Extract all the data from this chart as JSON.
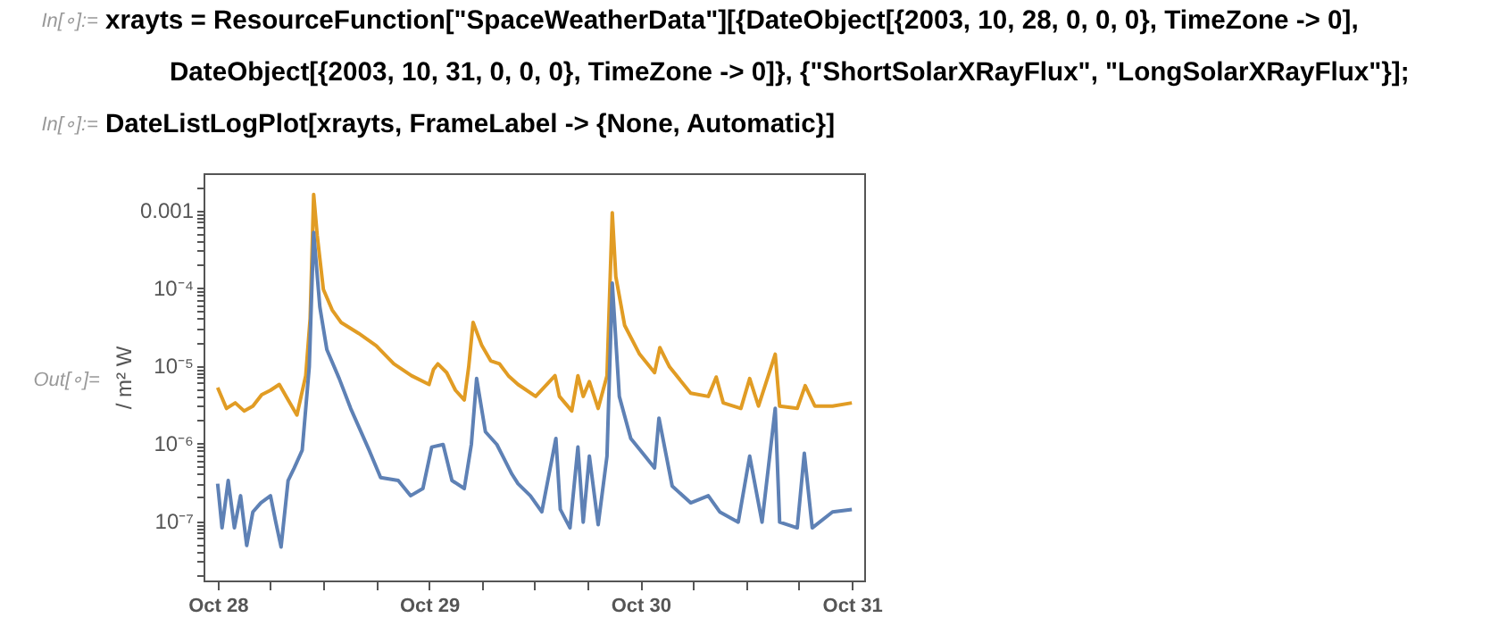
{
  "chart_data": {
    "type": "line",
    "ylabel": "/ m² W",
    "log": "y",
    "line_style": "solid",
    "annotations": [
      "In[∘]:=",
      "xrayts = ResourceFunction[\"SpaceWeatherData\"][{DateObject[{2003, 10, 28, 0, 0, 0}, TimeZone -> 0],",
      "DateObject[{2003, 10, 31, 0, 0, 0}, TimeZone -> 0]}, {\"ShortSolarXRayFlux\", \"LongSolarXRayFlux\"}];",
      "In[∘]:=",
      "DateListLogPlot[xrayts, FrameLabel -> {None, Automatic}]",
      "Out[∘]="
    ],
    "xlim": [
      "2003-10-27T22:24",
      "2003-10-31T01:24"
    ],
    "xticks": [
      {
        "value": "2003-10-28",
        "label": "Oct 28"
      },
      {
        "value": "2003-10-28T06:00",
        "label": null
      },
      {
        "value": "2003-10-28T12:00",
        "label": null
      },
      {
        "value": "2003-10-28T18:00",
        "label": null
      },
      {
        "value": "2003-10-29",
        "label": "Oct 29"
      },
      {
        "value": "2003-10-29T06:00",
        "label": null
      },
      {
        "value": "2003-10-29T12:00",
        "label": null
      },
      {
        "value": "2003-10-29T18:00",
        "label": null
      },
      {
        "value": "2003-10-30",
        "label": "Oct 30"
      },
      {
        "value": "2003-10-30T06:00",
        "label": null
      },
      {
        "value": "2003-10-30T12:00",
        "label": null
      },
      {
        "value": "2003-10-30T18:00",
        "label": null
      },
      {
        "value": "2003-10-31",
        "label": "Oct 31"
      }
    ],
    "ylim": [
      1.7e-08,
      0.003
    ],
    "yticks": [
      {
        "value": 2e-08,
        "label": null
      },
      {
        "value": 3e-08,
        "label": null
      },
      {
        "value": 4e-08,
        "label": null
      },
      {
        "value": 5e-08,
        "label": null
      },
      {
        "value": 6e-08,
        "label": null
      },
      {
        "value": 7e-08,
        "label": null
      },
      {
        "value": 8e-08,
        "label": null
      },
      {
        "value": 9e-08,
        "label": null
      },
      {
        "value": 1e-07,
        "label": "10⁻⁷"
      },
      {
        "value": 2e-07,
        "label": null
      },
      {
        "value": 3e-07,
        "label": null
      },
      {
        "value": 4e-07,
        "label": null
      },
      {
        "value": 5e-07,
        "label": null
      },
      {
        "value": 6e-07,
        "label": null
      },
      {
        "value": 7e-07,
        "label": null
      },
      {
        "value": 8e-07,
        "label": null
      },
      {
        "value": 9e-07,
        "label": null
      },
      {
        "value": 1e-06,
        "label": "10⁻⁶"
      },
      {
        "value": 2e-06,
        "label": null
      },
      {
        "value": 3e-06,
        "label": null
      },
      {
        "value": 4e-06,
        "label": null
      },
      {
        "value": 5e-06,
        "label": null
      },
      {
        "value": 6e-06,
        "label": null
      },
      {
        "value": 7e-06,
        "label": null
      },
      {
        "value": 8e-06,
        "label": null
      },
      {
        "value": 9e-06,
        "label": null
      },
      {
        "value": 1e-05,
        "label": "10⁻⁵"
      },
      {
        "value": 2e-05,
        "label": null
      },
      {
        "value": 3e-05,
        "label": null
      },
      {
        "value": 4e-05,
        "label": null
      },
      {
        "value": 5e-05,
        "label": null
      },
      {
        "value": 6e-05,
        "label": null
      },
      {
        "value": 7e-05,
        "label": null
      },
      {
        "value": 8e-05,
        "label": null
      },
      {
        "value": 9e-05,
        "label": null
      },
      {
        "value": 0.0001,
        "label": "10⁻⁴"
      },
      {
        "value": 0.0002,
        "label": null
      },
      {
        "value": 0.0003,
        "label": null
      },
      {
        "value": 0.0004,
        "label": null
      },
      {
        "value": 0.0005,
        "label": null
      },
      {
        "value": 0.0006,
        "label": null
      },
      {
        "value": 0.0007,
        "label": null
      },
      {
        "value": 0.0008,
        "label": null
      },
      {
        "value": 0.0009,
        "label": null
      },
      {
        "value": 0.001,
        "label": "0.001"
      },
      {
        "value": 0.002,
        "label": null
      }
    ],
    "series": [
      {
        "color": "#e19c24",
        "x": [
          "2003-10-28T00:00",
          "2003-10-28T01:00",
          "2003-10-28T02:00",
          "2003-10-28T03:00",
          "2003-10-28T04:00",
          "2003-10-28T05:00",
          "2003-10-28T06:00",
          "2003-10-28T07:00",
          "2003-10-28T08:00",
          "2003-10-28T09:00",
          "2003-10-28T10:00",
          "2003-10-28T10:30",
          "2003-10-28T10:54",
          "2003-10-28T11:18",
          "2003-10-28T12:00",
          "2003-10-28T13:00",
          "2003-10-28T14:00",
          "2003-10-28T16:00",
          "2003-10-28T18:00",
          "2003-10-28T20:00",
          "2003-10-28T22:00",
          "2003-10-29T00:00",
          "2003-10-29T00:30",
          "2003-10-29T01:00",
          "2003-10-29T02:00",
          "2003-10-29T03:00",
          "2003-10-29T04:00",
          "2003-10-29T04:30",
          "2003-10-29T05:00",
          "2003-10-29T06:00",
          "2003-10-29T07:00",
          "2003-10-29T08:00",
          "2003-10-29T09:00",
          "2003-10-29T10:06",
          "2003-10-29T12:06",
          "2003-10-29T14:18",
          "2003-10-29T14:48",
          "2003-10-29T16:12",
          "2003-10-29T16:54",
          "2003-10-29T17:30",
          "2003-10-29T18:12",
          "2003-10-29T19:12",
          "2003-10-29T20:12",
          "2003-10-29T20:48",
          "2003-10-29T21:12",
          "2003-10-29T22:12",
          "2003-10-29T23:54",
          "2003-10-30T01:36",
          "2003-10-30T02:12",
          "2003-10-30T03:18",
          "2003-10-30T05:42",
          "2003-10-30T07:42",
          "2003-10-30T08:36",
          "2003-10-30T09:24",
          "2003-10-30T11:24",
          "2003-10-30T12:24",
          "2003-10-30T13:24",
          "2003-10-30T15:18",
          "2003-10-30T15:48",
          "2003-10-30T17:48",
          "2003-10-30T18:42",
          "2003-10-30T19:48",
          "2003-10-30T21:48",
          "2003-10-31T00:00"
        ],
        "values": [
          5.2e-06,
          2.8e-06,
          3.3e-06,
          2.6e-06,
          3e-06,
          4.2e-06,
          4.8e-06,
          5.7e-06,
          3.6e-06,
          2.3e-06,
          7.4e-06,
          4e-05,
          0.0016,
          0.00048,
          9.6e-05,
          5.2e-05,
          3.6e-05,
          2.6e-05,
          1.8e-05,
          1.05e-05,
          7.4e-06,
          5.7e-06,
          8.9e-06,
          1.05e-05,
          8.1e-06,
          4.8e-06,
          3.6e-06,
          9.6e-06,
          3.6e-05,
          1.8e-05,
          1.15e-05,
          1.05e-05,
          7.4e-06,
          5.7e-06,
          4e-06,
          7.4e-06,
          4e-06,
          2.6e-06,
          7.4e-06,
          4e-06,
          6.2e-06,
          2.8e-06,
          7.4e-06,
          0.00093,
          0.00014,
          3.3e-05,
          1.4e-05,
          8.1e-06,
          1.7e-05,
          9.6e-06,
          4.4e-06,
          4e-06,
          7.1e-06,
          3.3e-06,
          2.8e-06,
          6.8e-06,
          3e-06,
          1.4e-05,
          3e-06,
          2.8e-06,
          5.5e-06,
          3e-06,
          3e-06,
          3.3e-06
        ]
      },
      {
        "color": "#5e81b5",
        "x": [
          "2003-10-28T00:00",
          "2003-10-28T00:30",
          "2003-10-28T01:12",
          "2003-10-28T01:54",
          "2003-10-28T02:36",
          "2003-10-28T03:18",
          "2003-10-28T04:00",
          "2003-10-28T04:54",
          "2003-10-28T06:00",
          "2003-10-28T06:36",
          "2003-10-28T07:12",
          "2003-10-28T08:00",
          "2003-10-28T08:42",
          "2003-10-28T09:36",
          "2003-10-28T10:24",
          "2003-10-28T10:54",
          "2003-10-28T11:36",
          "2003-10-28T12:24",
          "2003-10-28T13:48",
          "2003-10-28T15:06",
          "2003-10-28T17:12",
          "2003-10-28T18:30",
          "2003-10-28T20:30",
          "2003-10-28T21:54",
          "2003-10-28T23:18",
          "2003-10-29T00:18",
          "2003-10-29T01:36",
          "2003-10-29T02:36",
          "2003-10-29T04:00",
          "2003-10-29T04:48",
          "2003-10-29T05:24",
          "2003-10-29T06:24",
          "2003-10-29T07:42",
          "2003-10-29T09:24",
          "2003-10-29T10:06",
          "2003-10-29T11:30",
          "2003-10-29T12:48",
          "2003-10-29T14:24",
          "2003-10-29T14:54",
          "2003-10-29T16:00",
          "2003-10-29T16:54",
          "2003-10-29T17:30",
          "2003-10-29T18:12",
          "2003-10-29T19:12",
          "2003-10-29T20:12",
          "2003-10-29T20:48",
          "2003-10-29T21:36",
          "2003-10-29T22:54",
          "2003-10-30T01:36",
          "2003-10-30T02:06",
          "2003-10-30T03:36",
          "2003-10-30T05:42",
          "2003-10-30T07:42",
          "2003-10-30T09:00",
          "2003-10-30T11:06",
          "2003-10-30T12:24",
          "2003-10-30T13:48",
          "2003-10-30T15:18",
          "2003-10-30T15:48",
          "2003-10-30T17:48",
          "2003-10-30T18:36",
          "2003-10-30T19:30",
          "2003-10-30T21:48",
          "2003-10-31T00:00"
        ],
        "values": [
          3e-07,
          8.1e-08,
          3.3e-07,
          8.1e-08,
          2.1e-07,
          4.8e-08,
          1.3e-07,
          1.7e-07,
          2.1e-07,
          9.6e-08,
          4.6e-08,
          3.3e-07,
          4.8e-07,
          8.1e-07,
          9.6e-06,
          0.00052,
          5.7e-05,
          1.6e-05,
          6.8e-06,
          2.8e-06,
          8.1e-07,
          3.6e-07,
          3.3e-07,
          2.1e-07,
          2.6e-07,
          8.9e-07,
          9.6e-07,
          3.3e-07,
          2.6e-07,
          9.6e-07,
          6.8e-06,
          1.4e-06,
          9.6e-07,
          4e-07,
          3e-07,
          2.1e-07,
          1.3e-07,
          1.15e-06,
          1.4e-07,
          8.1e-08,
          8.9e-07,
          9.6e-08,
          6.8e-07,
          8.9e-08,
          6.8e-07,
          0.000115,
          4e-06,
          1.15e-06,
          4.8e-07,
          2.1e-06,
          2.8e-07,
          1.7e-07,
          2.1e-07,
          1.3e-07,
          9.6e-08,
          6.8e-07,
          9.6e-08,
          2.8e-06,
          9.6e-08,
          8.1e-08,
          7.4e-07,
          8.1e-08,
          1.3e-07,
          1.4e-07
        ]
      }
    ]
  }
}
